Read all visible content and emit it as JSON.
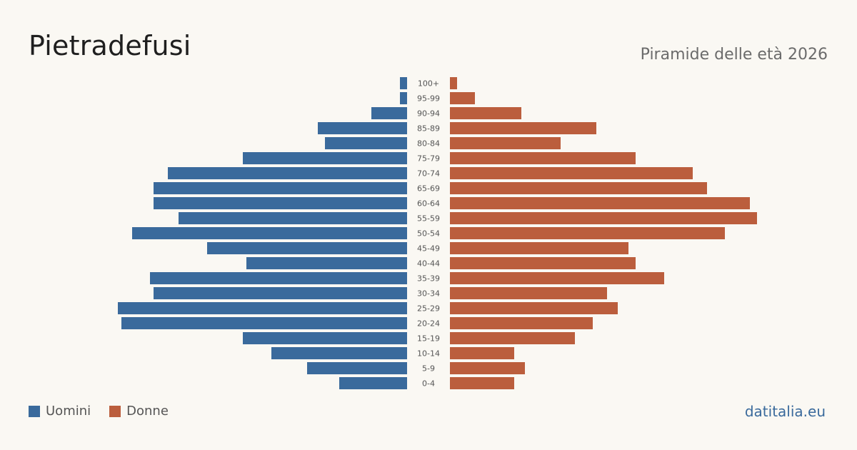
{
  "header": {
    "title": "Pietradefusi",
    "subtitle": "Piramide delle età 2026"
  },
  "legend": {
    "items": [
      {
        "label": "Uomini",
        "color": "#3a6a9c"
      },
      {
        "label": "Donne",
        "color": "#bb5e3d"
      }
    ]
  },
  "footer": {
    "brand": "datitalia.eu"
  },
  "chart_data": {
    "type": "bar",
    "orientation": "horizontal-pyramid",
    "title": "Pietradefusi",
    "subtitle": "Piramide delle età 2026",
    "categories": [
      "100+",
      "95-99",
      "90-94",
      "85-89",
      "80-84",
      "75-79",
      "70-74",
      "65-69",
      "60-64",
      "55-59",
      "50-54",
      "45-49",
      "40-44",
      "35-39",
      "30-34",
      "25-29",
      "20-24",
      "15-19",
      "10-14",
      "5-9",
      "0-4"
    ],
    "series": [
      {
        "name": "Uomini",
        "color": "#3a6a9c",
        "values": [
          1,
          1,
          5,
          12.5,
          11.5,
          23,
          33.5,
          35.5,
          35.5,
          32,
          38.5,
          28,
          22.5,
          36,
          35.5,
          40.5,
          40,
          23,
          19,
          14,
          9.5
        ]
      },
      {
        "name": "Donne",
        "color": "#bb5e3d",
        "values": [
          1,
          3.5,
          10,
          20.5,
          15.5,
          26,
          34,
          36,
          42,
          43,
          38.5,
          25,
          26,
          30,
          22,
          23.5,
          20,
          17.5,
          9,
          10.5,
          9
        ]
      }
    ],
    "grid": false,
    "legend_position": "bottom-left"
  }
}
